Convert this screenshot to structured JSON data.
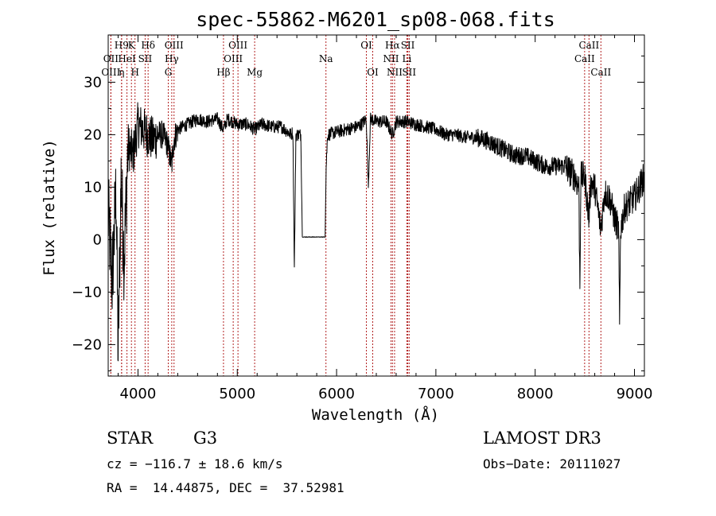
{
  "chart_data": {
    "type": "line",
    "title": "spec-55862-M6201_sp08-068.fits",
    "xlabel": "Wavelength (Å)",
    "ylabel": "Flux (relative)",
    "xlim": [
      3700,
      9100
    ],
    "ylim": [
      -26,
      39
    ],
    "xticks": [
      4000,
      5000,
      6000,
      7000,
      8000,
      9000
    ],
    "xtick_labels": [
      "4000",
      "5000",
      "6000",
      "7000",
      "8000",
      "9000"
    ],
    "yticks": [
      -20,
      -10,
      0,
      10,
      20,
      30
    ],
    "ytick_labels": [
      "−20",
      "−10",
      "0",
      "10",
      "20",
      "30"
    ],
    "line_color": "#000000",
    "marker_color": "#b22222",
    "spectrum_anchors": [
      [
        3700,
        5
      ],
      [
        3740,
        -8
      ],
      [
        3780,
        10
      ],
      [
        3800,
        -22
      ],
      [
        3830,
        12
      ],
      [
        3860,
        -4
      ],
      [
        3900,
        18
      ],
      [
        3950,
        16
      ],
      [
        4000,
        22
      ],
      [
        4050,
        21
      ],
      [
        4100,
        20
      ],
      [
        4150,
        19
      ],
      [
        4200,
        20
      ],
      [
        4250,
        20
      ],
      [
        4300,
        18
      ],
      [
        4340,
        14
      ],
      [
        4360,
        19
      ],
      [
        4400,
        21
      ],
      [
        4500,
        22
      ],
      [
        4600,
        23
      ],
      [
        4700,
        22.5
      ],
      [
        4800,
        23
      ],
      [
        4861,
        21
      ],
      [
        4900,
        23
      ],
      [
        5000,
        22
      ],
      [
        5100,
        22
      ],
      [
        5175,
        21
      ],
      [
        5250,
        22
      ],
      [
        5350,
        21.5
      ],
      [
        5450,
        21.5
      ],
      [
        5540,
        20
      ],
      [
        5560,
        20.5
      ],
      [
        5575,
        -5.5
      ],
      [
        5590,
        20
      ],
      [
        5640,
        20
      ],
      [
        5655,
        0.5
      ],
      [
        5885,
        0.5
      ],
      [
        5895,
        14
      ],
      [
        5910,
        20
      ],
      [
        6000,
        20.5
      ],
      [
        6100,
        21
      ],
      [
        6200,
        21.5
      ],
      [
        6250,
        22
      ],
      [
        6300,
        23
      ],
      [
        6320,
        10
      ],
      [
        6340,
        23
      ],
      [
        6400,
        22.5
      ],
      [
        6500,
        22.5
      ],
      [
        6563,
        20
      ],
      [
        6600,
        22.5
      ],
      [
        6700,
        22.5
      ],
      [
        6800,
        22
      ],
      [
        6900,
        21.5
      ],
      [
        7000,
        21
      ],
      [
        7100,
        20
      ],
      [
        7200,
        20
      ],
      [
        7300,
        19.5
      ],
      [
        7400,
        19.5
      ],
      [
        7500,
        19
      ],
      [
        7600,
        18
      ],
      [
        7700,
        17
      ],
      [
        7800,
        16
      ],
      [
        7900,
        16
      ],
      [
        8000,
        15
      ],
      [
        8100,
        14
      ],
      [
        8200,
        14
      ],
      [
        8300,
        14
      ],
      [
        8400,
        12
      ],
      [
        8440,
        10
      ],
      [
        8450,
        -9
      ],
      [
        8460,
        12
      ],
      [
        8500,
        12
      ],
      [
        8540,
        4
      ],
      [
        8560,
        11
      ],
      [
        8600,
        10
      ],
      [
        8660,
        2
      ],
      [
        8700,
        9
      ],
      [
        8750,
        8
      ],
      [
        8800,
        4
      ],
      [
        8840,
        2
      ],
      [
        8850,
        -17
      ],
      [
        8860,
        2
      ],
      [
        8900,
        6
      ],
      [
        8950,
        7
      ],
      [
        9000,
        8
      ],
      [
        9050,
        10
      ],
      [
        9100,
        12
      ]
    ],
    "lines": [
      {
        "label": "H9",
        "wave": 3835,
        "row": 1
      },
      {
        "label": "K",
        "wave": 3934,
        "row": 1
      },
      {
        "label": "Hδ",
        "wave": 4102,
        "row": 1
      },
      {
        "label": "OIII",
        "wave": 4363,
        "row": 1
      },
      {
        "label": "OIII",
        "wave": 5007,
        "row": 1
      },
      {
        "label": "OI",
        "wave": 6300,
        "row": 1
      },
      {
        "label": "Hα",
        "wave": 6563,
        "row": 1
      },
      {
        "label": "SII",
        "wave": 6717,
        "row": 1
      },
      {
        "label": "CaII",
        "wave": 8542,
        "row": 1
      },
      {
        "label": "OII",
        "wave": 3727,
        "row": 2
      },
      {
        "label": "HeI",
        "wave": 3889,
        "row": 2
      },
      {
        "label": "SII",
        "wave": 4072,
        "row": 2
      },
      {
        "label": "Hγ",
        "wave": 4340,
        "row": 2
      },
      {
        "label": "OIII",
        "wave": 4959,
        "row": 2
      },
      {
        "label": "Na",
        "wave": 5893,
        "row": 2
      },
      {
        "label": "NII",
        "wave": 6548,
        "row": 2
      },
      {
        "label": "Li",
        "wave": 6708,
        "row": 2
      },
      {
        "label": "CaII",
        "wave": 8498,
        "row": 2
      },
      {
        "label": "OIII",
        "wave": 3727,
        "row": 3
      },
      {
        "label": "η",
        "wave": 3835,
        "row": 3
      },
      {
        "label": "H",
        "wave": 3970,
        "row": 3
      },
      {
        "label": "G",
        "wave": 4305,
        "row": 3
      },
      {
        "label": "Hβ",
        "wave": 4861,
        "row": 3
      },
      {
        "label": "Mg",
        "wave": 5175,
        "row": 3
      },
      {
        "label": "OI",
        "wave": 6364,
        "row": 3
      },
      {
        "label": "NII",
        "wave": 6584,
        "row": 3
      },
      {
        "label": "SII",
        "wave": 6731,
        "row": 3
      },
      {
        "label": "CaII",
        "wave": 8662,
        "row": 3
      }
    ]
  },
  "info": {
    "object_class": "STAR",
    "subclass": "G3",
    "survey": "LAMOST DR3",
    "cz_line": "cz = −116.7 ± 18.6 km/s",
    "obs_date": "Obs−Date: 20111027",
    "coords": "RA =  14.44875, DEC =  37.52981"
  }
}
